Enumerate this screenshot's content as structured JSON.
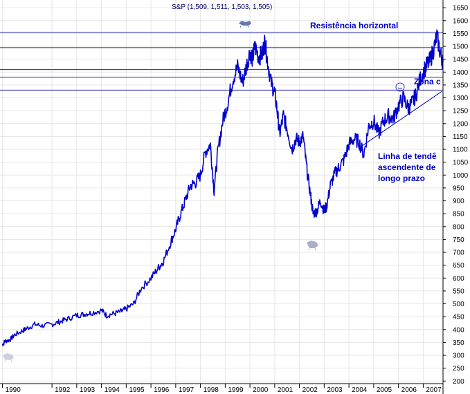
{
  "chart_data": {
    "type": "line",
    "title": "S&P (1,509, 1,511, 1,503, 1,505)",
    "xlabel": "",
    "ylabel": "",
    "x_ticks": [
      "1990",
      "1992",
      "1993",
      "1994",
      "1995",
      "1996",
      "1997",
      "1998",
      "1999",
      "2000",
      "2001",
      "2002",
      "2003",
      "2004",
      "2005",
      "2006",
      "2007"
    ],
    "y_ticks": [
      1650,
      1600,
      1550,
      1500,
      1450,
      1400,
      1350,
      1300,
      1250,
      1200,
      1150,
      1100,
      1050,
      1000,
      950,
      900,
      850,
      800,
      750,
      700,
      650,
      600,
      550,
      500,
      450,
      400,
      350,
      300,
      250,
      200
    ],
    "xlim": [
      1989.9,
      2007.8
    ],
    "ylim": [
      190,
      1680
    ],
    "horizontal_levels": [
      1555,
      1495,
      1410,
      1380,
      1330
    ],
    "trendline": {
      "from": [
        2004.4,
        1105
      ],
      "to": [
        2007.75,
        1325
      ]
    },
    "series": [
      {
        "name": "S&P 500",
        "color": "#0000cc",
        "x": [
          1990.0,
          1990.1,
          1990.3,
          1990.5,
          1990.8,
          1991.0,
          1991.3,
          1991.6,
          1992.0,
          1992.3,
          1992.6,
          1993.0,
          1993.3,
          1993.6,
          1994.0,
          1994.2,
          1994.5,
          1994.8,
          1995.0,
          1995.3,
          1995.6,
          1996.0,
          1996.3,
          1996.5,
          1996.8,
          1997.0,
          1997.2,
          1997.4,
          1997.6,
          1997.8,
          1998.0,
          1998.2,
          1998.4,
          1998.55,
          1998.7,
          1998.9,
          1999.1,
          1999.3,
          1999.5,
          1999.7,
          1999.85,
          2000.0,
          2000.1,
          2000.2,
          2000.35,
          2000.5,
          2000.6,
          2000.7,
          2000.85,
          2001.0,
          2001.1,
          2001.2,
          2001.35,
          2001.5,
          2001.7,
          2001.85,
          2002.0,
          2002.15,
          2002.3,
          2002.45,
          2002.55,
          2002.7,
          2002.85,
          2003.0,
          2003.1,
          2003.25,
          2003.45,
          2003.6,
          2003.8,
          2004.0,
          2004.2,
          2004.4,
          2004.6,
          2004.8,
          2005.0,
          2005.2,
          2005.4,
          2005.6,
          2005.8,
          2006.0,
          2006.2,
          2006.4,
          2006.55,
          2006.7,
          2006.9,
          2007.1,
          2007.25,
          2007.4,
          2007.55,
          2007.7,
          2007.8
        ],
        "values": [
          340,
          355,
          360,
          380,
          395,
          405,
          420,
          415,
          420,
          430,
          440,
          455,
          460,
          465,
          475,
          455,
          462,
          470,
          480,
          500,
          560,
          600,
          640,
          665,
          740,
          790,
          850,
          905,
          960,
          970,
          1000,
          1090,
          1120,
          940,
          1090,
          1210,
          1280,
          1370,
          1420,
          1360,
          1420,
          1480,
          1450,
          1500,
          1460,
          1470,
          1520,
          1450,
          1360,
          1320,
          1250,
          1160,
          1230,
          1180,
          1100,
          1140,
          1130,
          1150,
          1020,
          920,
          850,
          860,
          900,
          860,
          880,
          960,
          1010,
          1030,
          1060,
          1120,
          1140,
          1130,
          1080,
          1190,
          1210,
          1160,
          1210,
          1230,
          1220,
          1270,
          1300,
          1260,
          1280,
          1310,
          1380,
          1420,
          1440,
          1480,
          1540,
          1470,
          1440
        ]
      }
    ],
    "annotations": [
      {
        "text": "Resistência horizontal"
      },
      {
        "text": "Zona c"
      },
      {
        "text": "Linha de tendê"
      },
      {
        "text": "ascendente de"
      },
      {
        "text": "longo prazo"
      }
    ]
  }
}
